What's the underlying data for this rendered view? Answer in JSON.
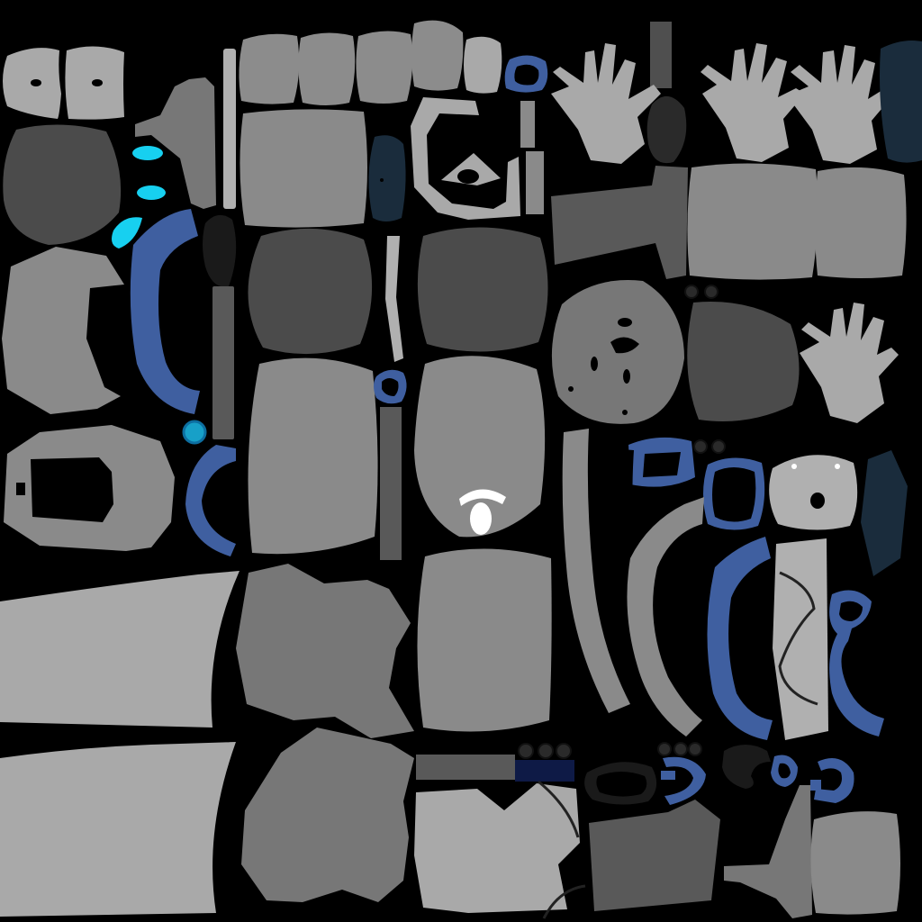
{
  "texture_atlas": {
    "background_color": "#000000",
    "palette": {
      "light_gray": "#a9a9a9",
      "light_gray_2": "#b0b0b0",
      "mid_gray": "#8a8a8a",
      "mid_gray_2": "#7f7f7f",
      "dark_gray": "#4b4b4b",
      "darker_gray": "#595959",
      "charcoal": "#2a2a2a",
      "near_black": "#1a1a1a",
      "blue": "#3f5fa0",
      "navy": "#1a2c3c",
      "deep_navy": "#0e1a46",
      "cyan": "#17d0f0",
      "white": "#ffffff"
    }
  }
}
